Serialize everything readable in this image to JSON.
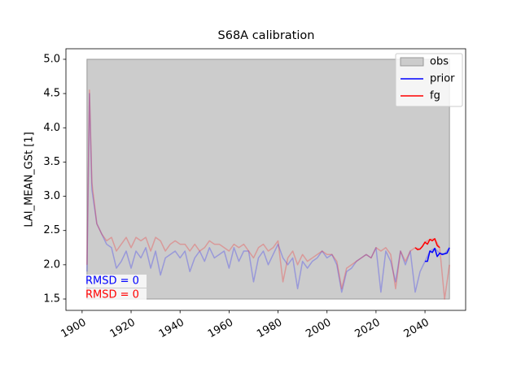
{
  "chart_data": {
    "type": "line",
    "title": "S68A calibration",
    "ylabel": "LAI_MEAN_GSt [1]",
    "xlim": [
      1893.4,
      2056.6
    ],
    "ylim": [
      1.334,
      5.154
    ],
    "xticks": [
      1900,
      1920,
      1940,
      1960,
      1980,
      2000,
      2020,
      2040
    ],
    "yticks": [
      1.5,
      {
        "value": 2,
        "label": "2.0"
      },
      2.5,
      {
        "value": 3,
        "label": "3.0"
      },
      3.5,
      {
        "value": 4,
        "label": "4.0"
      },
      4.5,
      {
        "value": 5,
        "label": "5.0"
      }
    ],
    "legend": "upper right",
    "obs": {
      "name": "obs",
      "color": "#cccccc",
      "edge": "#999999",
      "x": [
        1902,
        2050
      ],
      "y": [
        1.5,
        5.0
      ]
    },
    "series": [
      {
        "name": "prior",
        "color": "#0000ff",
        "x": [
          2040,
          2041,
          2042,
          2043,
          2044,
          2045,
          2046,
          2047,
          2048,
          2049,
          2050
        ],
        "values": [
          2.05,
          2.05,
          2.2,
          2.18,
          2.24,
          2.12,
          2.17,
          2.15,
          2.16,
          2.17,
          2.25
        ]
      },
      {
        "name": "fg",
        "color": "#ff0000",
        "x": [
          2036,
          2037,
          2038,
          2039,
          2040,
          2041,
          2042,
          2043,
          2044,
          2045,
          2046
        ],
        "values": [
          2.25,
          2.22,
          2.23,
          2.27,
          2.33,
          2.3,
          2.37,
          2.35,
          2.38,
          2.28,
          2.25
        ]
      }
    ],
    "background_series": [
      {
        "color": "#0000ff",
        "alpha": 0.25,
        "x": [
          1902,
          1903,
          1904,
          1906,
          1908,
          1910,
          1912,
          1914,
          1916,
          1918,
          1920,
          1922,
          1924,
          1926,
          1928,
          1930,
          1932,
          1934,
          1936,
          1938,
          1940,
          1942,
          1944,
          1946,
          1948,
          1950,
          1952,
          1954,
          1956,
          1958,
          1960,
          1962,
          1964,
          1966,
          1968,
          1970,
          1972,
          1974,
          1976,
          1978,
          1980,
          1982,
          1984,
          1986,
          1988,
          1990,
          1992,
          1994,
          1996,
          1998,
          2000,
          2002,
          2004,
          2006,
          2008,
          2010,
          2012,
          2014,
          2016,
          2018,
          2020,
          2022,
          2024,
          2026,
          2028,
          2030,
          2032,
          2034,
          2036,
          2038,
          2040,
          2042,
          2044,
          2046,
          2048,
          2050
        ],
        "values": [
          1.9,
          4.5,
          3.1,
          2.6,
          2.45,
          2.3,
          2.25,
          1.95,
          2.05,
          2.2,
          1.95,
          2.2,
          2.1,
          2.25,
          1.95,
          2.2,
          1.85,
          2.1,
          2.15,
          2.2,
          2.1,
          2.2,
          1.9,
          2.1,
          2.2,
          2.05,
          2.25,
          2.1,
          2.15,
          2.2,
          1.95,
          2.25,
          2.05,
          2.2,
          2.2,
          1.75,
          2.1,
          2.2,
          2.0,
          2.15,
          2.3,
          2.1,
          2.0,
          2.1,
          1.65,
          2.05,
          1.95,
          2.05,
          2.1,
          2.2,
          2.1,
          2.15,
          2.0,
          1.6,
          1.9,
          1.95,
          2.05,
          2.1,
          2.15,
          2.1,
          2.25,
          1.6,
          2.2,
          2.05,
          1.75,
          2.2,
          2.0,
          2.2,
          1.6,
          1.9,
          2.05,
          2.2,
          2.24,
          2.17,
          2.16,
          2.25
        ]
      },
      {
        "color": "#ff0000",
        "alpha": 0.25,
        "x": [
          1902,
          1903,
          1904,
          1906,
          1908,
          1910,
          1912,
          1914,
          1916,
          1918,
          1920,
          1922,
          1924,
          1926,
          1928,
          1930,
          1932,
          1934,
          1936,
          1938,
          1940,
          1942,
          1944,
          1946,
          1948,
          1950,
          1952,
          1954,
          1956,
          1958,
          1960,
          1962,
          1964,
          1966,
          1968,
          1970,
          1972,
          1974,
          1976,
          1978,
          1980,
          1982,
          1984,
          1986,
          1988,
          1990,
          1992,
          1994,
          1996,
          1998,
          2000,
          2002,
          2004,
          2006,
          2008,
          2010,
          2012,
          2014,
          2016,
          2018,
          2020,
          2022,
          2024,
          2026,
          2028,
          2030,
          2032,
          2034,
          2036,
          2038,
          2040,
          2042,
          2044,
          2046,
          2048,
          2050
        ],
        "values": [
          2.0,
          4.55,
          3.2,
          2.6,
          2.45,
          2.35,
          2.4,
          2.2,
          2.3,
          2.4,
          2.25,
          2.4,
          2.35,
          2.4,
          2.2,
          2.4,
          2.35,
          2.2,
          2.3,
          2.35,
          2.3,
          2.3,
          2.2,
          2.3,
          2.2,
          2.25,
          2.35,
          2.3,
          2.3,
          2.25,
          2.2,
          2.3,
          2.25,
          2.3,
          2.2,
          2.1,
          2.25,
          2.3,
          2.2,
          2.25,
          2.35,
          1.75,
          2.1,
          2.2,
          2.0,
          2.15,
          2.05,
          2.1,
          2.15,
          2.2,
          2.15,
          2.15,
          2.05,
          1.65,
          1.95,
          2.0,
          2.05,
          2.1,
          2.15,
          2.1,
          2.25,
          2.2,
          2.25,
          2.15,
          1.65,
          2.2,
          2.05,
          2.2,
          2.25,
          2.23,
          2.33,
          2.37,
          2.38,
          2.25,
          1.5,
          2.0
        ]
      }
    ],
    "annotations": [
      {
        "text": "RMSD = 0",
        "color": "#0000ff"
      },
      {
        "text": "RMSD = 0",
        "color": "#ff0000"
      }
    ]
  }
}
